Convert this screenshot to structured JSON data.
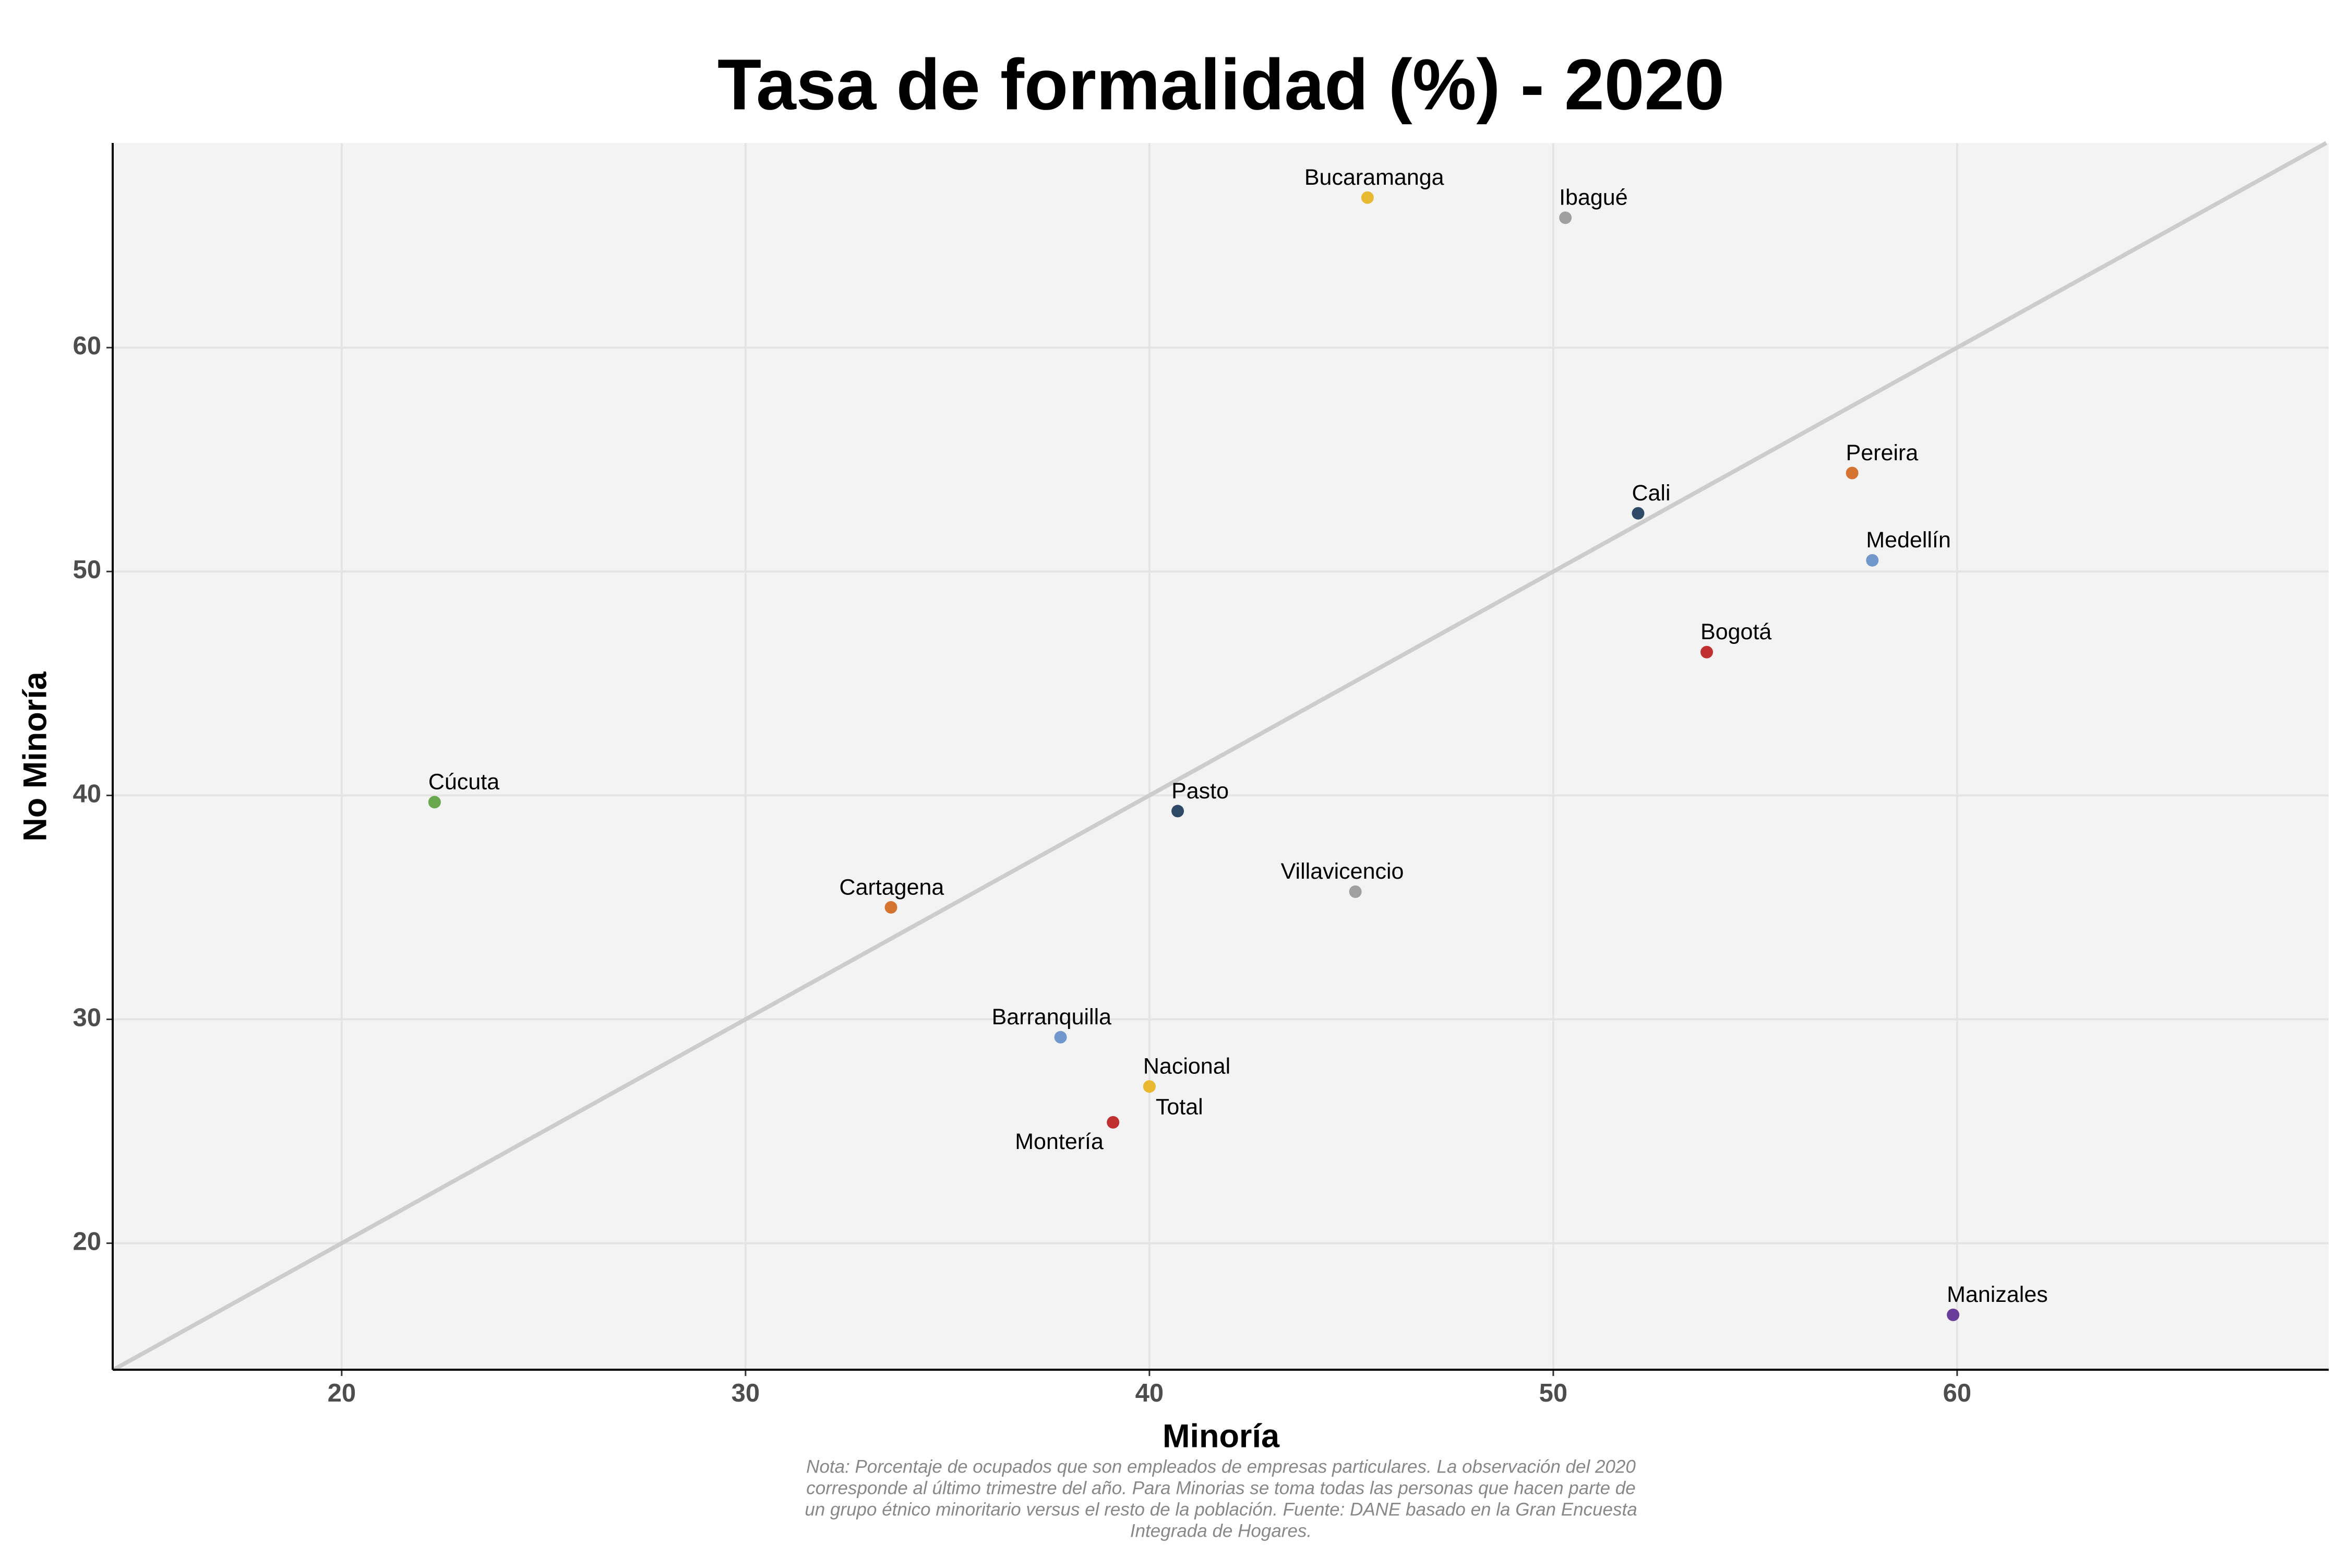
{
  "chart_data": {
    "type": "scatter",
    "title": "Tasa de formalidad (%) - 2020",
    "x_label": "Minoría",
    "y_label": "No Minoría",
    "xlim": [
      14.33,
      69.2
    ],
    "ylim": [
      14.35,
      69.14
    ],
    "xticks": [
      20,
      30,
      40,
      50,
      60
    ],
    "yticks": [
      20,
      30,
      40,
      50,
      60
    ],
    "grid": true,
    "labels": [
      "Bucaramanga",
      "Ibagué",
      "Pereira",
      "Cali",
      "Medellín",
      "Bogotá",
      "Cúcuta",
      "Pasto",
      "Villavicencio",
      "Cartagena",
      "Barranquilla",
      "Nacional",
      "Total",
      "Montería",
      "Manizales"
    ],
    "x": [
      45.4,
      50.3,
      57.4,
      52.1,
      57.9,
      53.8,
      22.3,
      40.7,
      45.1,
      33.6,
      37.8,
      40.0,
      40.0,
      39.1,
      59.9
    ],
    "y": [
      66.7,
      65.8,
      54.4,
      52.6,
      50.5,
      46.4,
      39.7,
      39.3,
      35.7,
      35.0,
      29.2,
      27.0,
      27.0,
      25.4,
      16.8
    ],
    "colors": [
      "#e8b830",
      "#a0a0a0",
      "#d47430",
      "#2f4a66",
      "#7098cc",
      "#c03030",
      "#6aa84f",
      "#2f4a66",
      "#a0a0a0",
      "#d47430",
      "#7098cc",
      "#e8b830",
      "#e8b830",
      "#c03030",
      "#6a3d9a"
    ],
    "note_lines": [
      "Nota: Porcentaje de ocupados que son empleados de empresas particulares. La observación del 2020",
      "corresponde al último trimestre del año. Para Minorias se toma todas las personas que hacen parte de",
      "un grupo étnico minoritario versus el resto de la población. Fuente: DANE basado en la Gran Encuesta",
      "Integrada de Hogares."
    ]
  }
}
